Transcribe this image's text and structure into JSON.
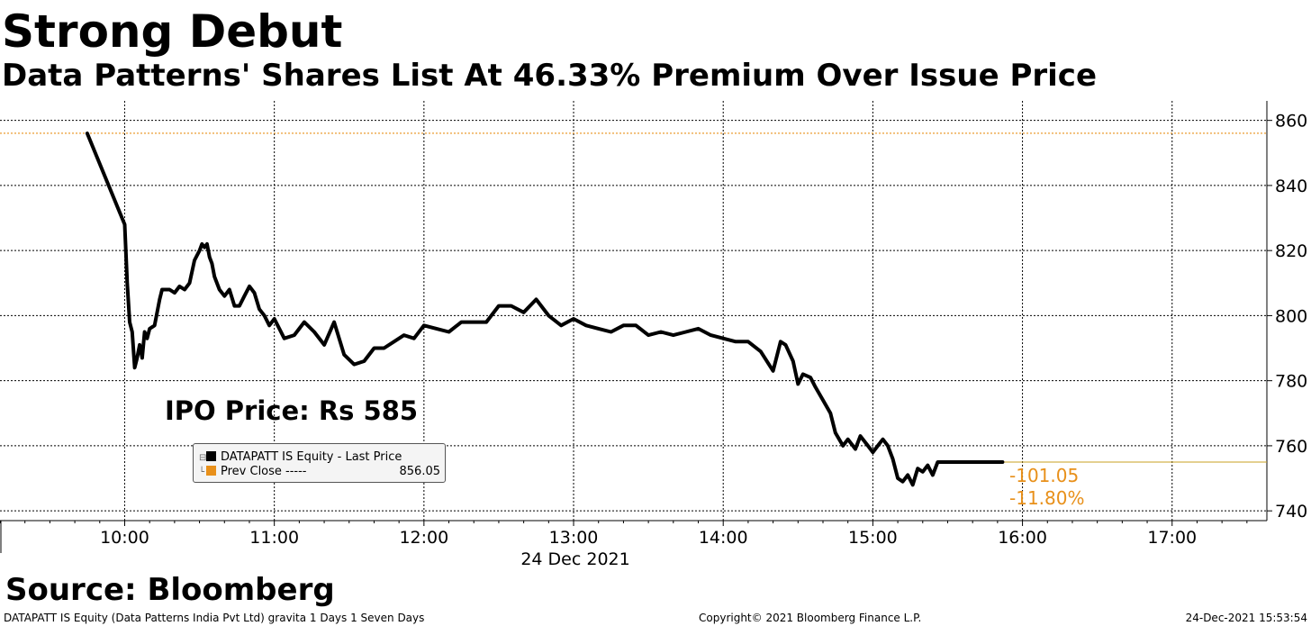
{
  "title": "Strong Debut",
  "subtitle": "Data Patterns' Shares List At 46.33% Premium Over Issue Price",
  "annotation": "IPO Price: Rs 585",
  "legend": {
    "series1_label": "DATAPATT IS Equity - Last Price",
    "series2_label": "Prev Close -----",
    "series2_value": "856.05"
  },
  "change_labels": {
    "absolute": "-101.05",
    "percent": "-11.80%"
  },
  "date_label": "24 Dec 2021",
  "source": "Source: Bloomberg",
  "footer": {
    "left": "DATAPATT IS Equity (Data Patterns India Pvt Ltd) gravita 1 Days 1 Seven Days",
    "middle": "Copyright© 2021 Bloomberg Finance L.P.",
    "right": "24-Dec-2021 15:53:54"
  },
  "colors": {
    "price_line": "#000000",
    "prev_close": "#e8901a",
    "last_price_marker": "#c8a020"
  },
  "chart_data": {
    "type": "line",
    "x_unit": "time of day",
    "x_ticks": [
      "10:00",
      "11:00",
      "12:00",
      "13:00",
      "14:00",
      "15:00",
      "16:00",
      "17:00"
    ],
    "y_ticks": [
      740,
      760,
      780,
      800,
      820,
      840,
      860
    ],
    "xlim": [
      "09:10",
      "17:38"
    ],
    "ylim": [
      737,
      866
    ],
    "y_axis_side": "right",
    "grid": true,
    "prev_close": 856.05,
    "last_price": 755,
    "series": [
      {
        "name": "DATAPATT IS Equity - Last Price",
        "x": [
          "09:45",
          "10:00",
          "10:01",
          "10:02",
          "10:03",
          "10:04",
          "10:05",
          "10:06",
          "10:07",
          "10:08",
          "10:09",
          "10:10",
          "10:12",
          "10:14",
          "10:15",
          "10:16",
          "10:18",
          "10:20",
          "10:22",
          "10:24",
          "10:26",
          "10:28",
          "10:30",
          "10:31",
          "10:32",
          "10:33",
          "10:34",
          "10:35",
          "10:36",
          "10:38",
          "10:40",
          "10:42",
          "10:44",
          "10:46",
          "10:48",
          "10:50",
          "10:52",
          "10:54",
          "10:56",
          "10:58",
          "11:00",
          "11:04",
          "11:08",
          "11:12",
          "11:16",
          "11:20",
          "11:24",
          "11:28",
          "11:32",
          "11:36",
          "11:40",
          "11:44",
          "11:48",
          "11:52",
          "11:56",
          "12:00",
          "12:05",
          "12:10",
          "12:15",
          "12:20",
          "12:25",
          "12:30",
          "12:35",
          "12:40",
          "12:45",
          "12:50",
          "12:55",
          "13:00",
          "13:05",
          "13:10",
          "13:15",
          "13:20",
          "13:25",
          "13:30",
          "13:35",
          "13:40",
          "13:45",
          "13:50",
          "13:55",
          "14:00",
          "14:05",
          "14:10",
          "14:15",
          "14:20",
          "14:23",
          "14:25",
          "14:28",
          "14:30",
          "14:32",
          "14:35",
          "14:37",
          "14:40",
          "14:43",
          "14:45",
          "14:48",
          "14:50",
          "14:53",
          "14:55",
          "14:58",
          "15:00",
          "15:02",
          "15:04",
          "15:06",
          "15:08",
          "15:10",
          "15:12",
          "15:14",
          "15:16",
          "15:18",
          "15:20",
          "15:22",
          "15:24",
          "15:26",
          "15:28",
          "15:30",
          "15:35",
          "15:40",
          "15:45",
          "15:52"
        ],
        "values": [
          856,
          828,
          810,
          798,
          795,
          784,
          787,
          791,
          787,
          795,
          793,
          796,
          797,
          805,
          808,
          808,
          808,
          807,
          809,
          808,
          810,
          817,
          820,
          822,
          821,
          822,
          818,
          816,
          812,
          808,
          806,
          808,
          803,
          803,
          806,
          809,
          807,
          802,
          800,
          797,
          799,
          793,
          794,
          798,
          795,
          791,
          798,
          788,
          785,
          786,
          790,
          790,
          792,
          794,
          793,
          797,
          796,
          795,
          798,
          798,
          798,
          803,
          803,
          801,
          805,
          800,
          797,
          799,
          797,
          796,
          795,
          797,
          797,
          794,
          795,
          794,
          795,
          796,
          794,
          793,
          792,
          792,
          789,
          783,
          792,
          791,
          786,
          779,
          782,
          781,
          778,
          774,
          770,
          764,
          760,
          762,
          759,
          763,
          760,
          758,
          760,
          762,
          760,
          756,
          750,
          749,
          751,
          748,
          753,
          752,
          754,
          751,
          755,
          755,
          755,
          755,
          755,
          755,
          755
        ]
      }
    ]
  }
}
